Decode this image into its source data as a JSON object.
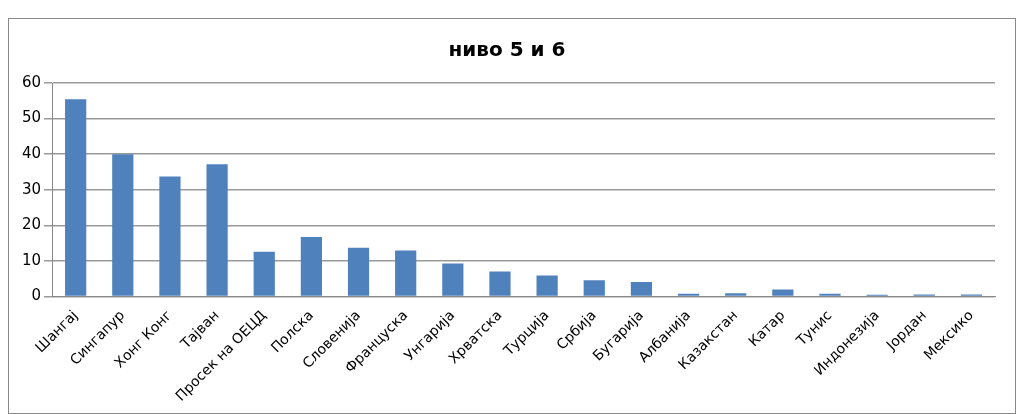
{
  "chart_data": {
    "type": "bar",
    "title": "ниво 5 и 6",
    "categories": [
      "Шангај",
      "Сингапур",
      "Хонг Конг",
      "Тајван",
      "Просек на ОЕЦД",
      "Полска",
      "Словенија",
      "Француска",
      "Унгарија",
      "Хрватска",
      "Турција",
      "Србија",
      "Бугарија",
      "Албанија",
      "Казакстан",
      "Катар",
      "Тунис",
      "Индонезија",
      "Јордан",
      "Мексико"
    ],
    "values": [
      55.4,
      40.0,
      33.7,
      37.2,
      12.6,
      16.7,
      13.7,
      12.9,
      9.3,
      7.0,
      5.9,
      4.6,
      4.1,
      0.8,
      0.9,
      2.0,
      0.8,
      0.5,
      0.6,
      0.6
    ],
    "color": "#4f81bd",
    "ylim": [
      0,
      60
    ],
    "yticks": [
      0,
      10,
      20,
      30,
      40,
      50,
      60
    ],
    "grid": "y",
    "legend": false
  }
}
